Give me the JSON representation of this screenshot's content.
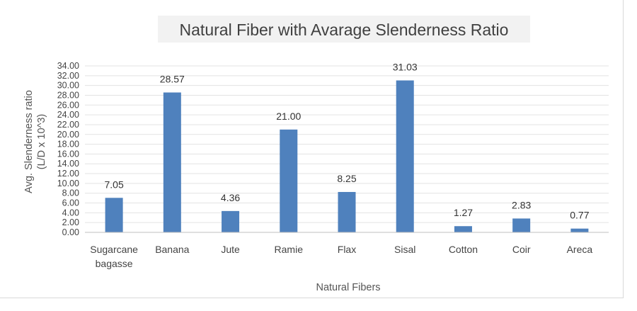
{
  "chart_data": {
    "type": "bar",
    "title": "Natural Fiber with Avarage Slenderness Ratio",
    "xlabel": "Natural Fibers",
    "ylabel_lines": [
      "Avg. Slenderness ratio",
      "(L/D x 10^3)"
    ],
    "categories": [
      [
        "Sugarcane",
        "bagasse"
      ],
      [
        "Banana"
      ],
      [
        "Jute"
      ],
      [
        "Ramie"
      ],
      [
        "Flax"
      ],
      [
        "Sisal"
      ],
      [
        "Cotton"
      ],
      [
        "Coir"
      ],
      [
        "Areca"
      ]
    ],
    "values": [
      7.05,
      28.57,
      4.36,
      21.0,
      8.25,
      31.03,
      1.27,
      2.83,
      0.77
    ],
    "value_labels": [
      "7.05",
      "28.57",
      "4.36",
      "21.00",
      "8.25",
      "31.03",
      "1.27",
      "2.83",
      "0.77"
    ],
    "ylim": [
      0,
      34
    ],
    "ytick_step": 2,
    "grid": true,
    "legend": "none",
    "colors": {
      "bar": "#4f81bd",
      "grid": "#e3e3e3",
      "axis": "#bfbfbf"
    }
  }
}
